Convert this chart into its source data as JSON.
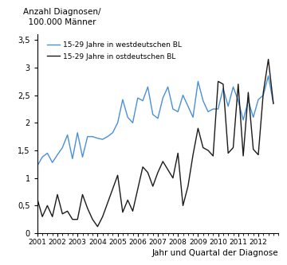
{
  "west_values": [
    1.22,
    1.38,
    1.45,
    1.28,
    1.42,
    1.55,
    1.78,
    1.35,
    1.82,
    1.38,
    1.75,
    1.75,
    1.72,
    1.7,
    1.75,
    1.82,
    2.0,
    2.42,
    2.1,
    2.0,
    2.45,
    2.4,
    2.65,
    2.15,
    2.08,
    2.45,
    2.65,
    2.25,
    2.2,
    2.5,
    2.3,
    2.1,
    2.75,
    2.4,
    2.2,
    2.25,
    2.25,
    2.62,
    2.3,
    2.65,
    2.4,
    2.05,
    2.4,
    2.1,
    2.42,
    2.5,
    2.85,
    2.35
  ],
  "east_values": [
    0.62,
    0.3,
    0.5,
    0.3,
    0.7,
    0.35,
    0.4,
    0.25,
    0.25,
    0.7,
    0.45,
    0.25,
    0.12,
    0.3,
    0.55,
    0.8,
    1.05,
    0.38,
    0.6,
    0.4,
    0.8,
    1.2,
    1.1,
    0.85,
    1.1,
    1.3,
    1.15,
    1.0,
    1.45,
    0.5,
    0.85,
    1.42,
    1.9,
    1.55,
    1.5,
    1.4,
    2.75,
    2.7,
    1.45,
    1.55,
    2.7,
    1.4,
    2.55,
    1.52,
    1.42,
    2.55,
    3.15,
    2.35
  ],
  "west_color": "#4a90d9",
  "east_color": "#1a1a1a",
  "west_label": "15-29 Jahre in westdeutschen BL",
  "east_label": "15-29 Jahre in ostdeutschen BL",
  "ylabel_line1": "Anzahl Diagnosen/",
  "ylabel_line2": "  100.000 Männer",
  "xlabel": "Jahr und Quartal der Diagnose",
  "yticks": [
    0,
    0.5,
    1.0,
    1.5,
    2.0,
    2.5,
    3.0,
    3.5
  ],
  "ytick_labels": [
    "0",
    "0,5",
    "1",
    "1,5",
    "2",
    "2,5",
    "3",
    "3,5"
  ],
  "xtick_years": [
    2001,
    2002,
    2003,
    2004,
    2005,
    2006,
    2007,
    2008,
    2009,
    2010,
    2011,
    2012
  ],
  "ylim": [
    0,
    3.6
  ],
  "xlim": [
    2001.0,
    2013.0
  ],
  "start_year": 2001,
  "n_quarters": 48
}
